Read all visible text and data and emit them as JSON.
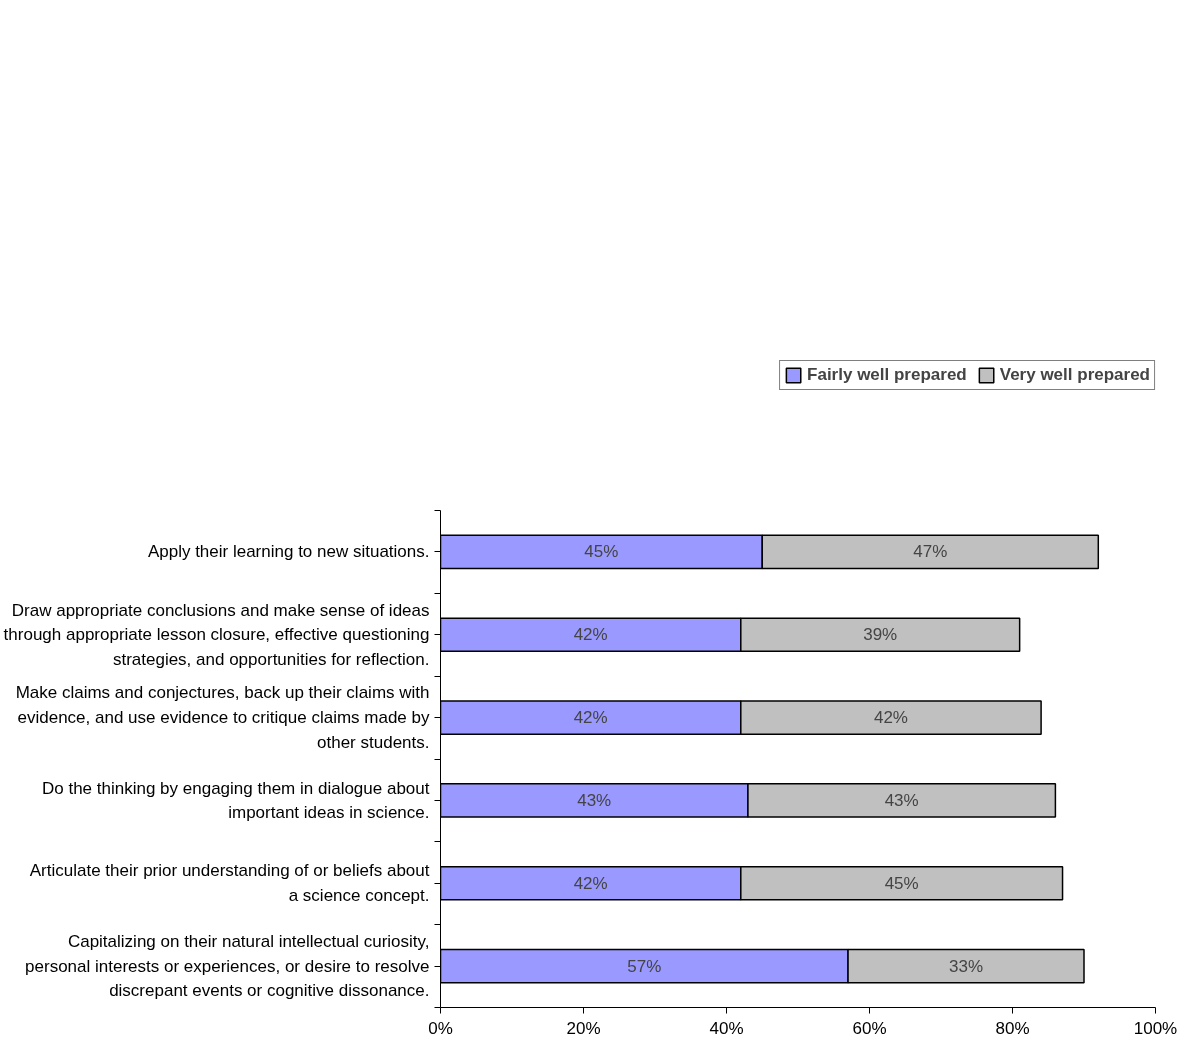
{
  "chart_data": {
    "type": "bar",
    "orientation": "horizontal",
    "stacked": true,
    "categories": [
      "Apply their learning to new situations.",
      "Draw appropriate conclusions and make sense of ideas through appropriate lesson closure, effective questioning strategies, and opportunities for reflection.",
      "Make claims and conjectures, back up their claims with evidence, and use evidence to critique claims made by other students.",
      "Do the thinking by engaging them in dialogue about important ideas in science.",
      "Articulate their prior understanding of or beliefs about a science concept.",
      "Capitalizing on their natural intellectual curiosity, personal interests or experiences, or desire to resolve discrepant events or cognitive dissonance."
    ],
    "series": [
      {
        "name": "Fairly well prepared",
        "color": "#9999ff",
        "values": [
          45,
          42,
          42,
          43,
          42,
          57
        ],
        "value_labels": [
          "45%",
          "42%",
          "42%",
          "43%",
          "42%",
          "57%"
        ]
      },
      {
        "name": "Very well prepared",
        "color": "#c0c0c0",
        "values": [
          47,
          39,
          42,
          43,
          45,
          33
        ],
        "value_labels": [
          "47%",
          "39%",
          "42%",
          "43%",
          "45%",
          "33%"
        ]
      }
    ],
    "xlim": [
      0,
      100
    ],
    "xticks": [
      {
        "value": 0,
        "label": "0%"
      },
      {
        "value": 20,
        "label": "20%"
      },
      {
        "value": 40,
        "label": "40%"
      },
      {
        "value": 60,
        "label": "60%"
      },
      {
        "value": 80,
        "label": "80%"
      },
      {
        "value": 100,
        "label": "100%"
      }
    ],
    "grid": false,
    "legend": "top right"
  }
}
